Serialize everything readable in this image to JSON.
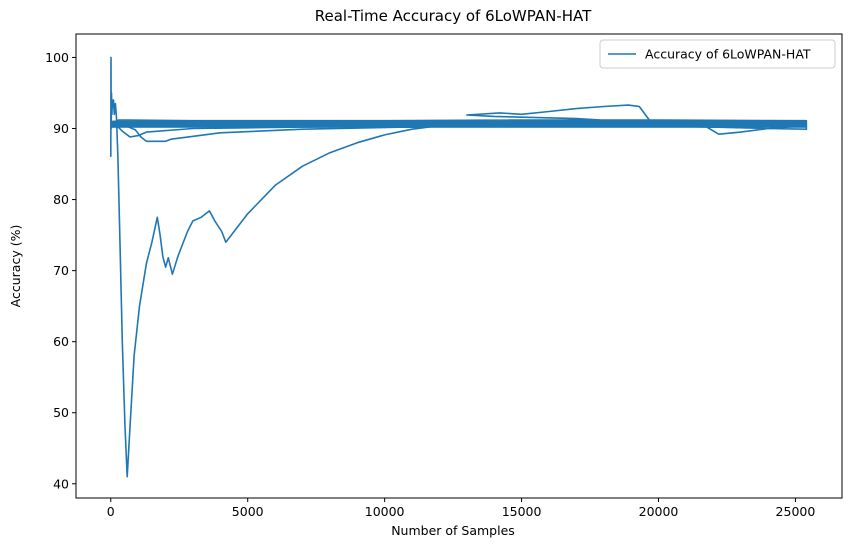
{
  "chart_data": {
    "type": "line",
    "title": "Real-Time Accuracy of 6LoWPAN-HAT",
    "xlabel": "Number of Samples",
    "ylabel": "Accuracy (%)",
    "xlim": [
      -1270,
      26700
    ],
    "ylim": [
      38,
      103.3
    ],
    "x_ticks": [
      0,
      5000,
      10000,
      15000,
      20000,
      25000
    ],
    "x_tick_labels": [
      "0",
      "5000",
      "10000",
      "15000",
      "20000",
      "25000"
    ],
    "y_ticks": [
      40,
      50,
      60,
      70,
      80,
      90,
      100
    ],
    "y_tick_labels": [
      "40",
      "50",
      "60",
      "70",
      "80",
      "90",
      "100"
    ],
    "grid": false,
    "legend_position": "top-right",
    "series": [
      {
        "name": "Accuracy of 6LoWPAN-HAT",
        "color": "#1f77b4",
        "points": [
          [
            0,
            86
          ],
          [
            8,
            100
          ],
          [
            15,
            90
          ],
          [
            25,
            95
          ],
          [
            40,
            92
          ],
          [
            60,
            94
          ],
          [
            80,
            93
          ],
          [
            100,
            94
          ],
          [
            130,
            92
          ],
          [
            170,
            93.5
          ],
          [
            210,
            91.5
          ],
          [
            260,
            86
          ],
          [
            330,
            75
          ],
          [
            420,
            60
          ],
          [
            520,
            48
          ],
          [
            600,
            41
          ],
          [
            700,
            48
          ],
          [
            850,
            58
          ],
          [
            1050,
            65
          ],
          [
            1300,
            71
          ],
          [
            1500,
            74
          ],
          [
            1700,
            77.5
          ],
          [
            1800,
            75
          ],
          [
            1900,
            72
          ],
          [
            2000,
            70.5
          ],
          [
            2100,
            71.8
          ],
          [
            2250,
            69.5
          ],
          [
            2450,
            72
          ],
          [
            2800,
            75.5
          ],
          [
            3000,
            77
          ],
          [
            3300,
            77.5
          ],
          [
            3600,
            78.4
          ],
          [
            3800,
            77
          ],
          [
            4050,
            75.5
          ],
          [
            4200,
            74
          ],
          [
            5000,
            78
          ],
          [
            6000,
            82
          ],
          [
            7000,
            84.7
          ],
          [
            8000,
            86.6
          ],
          [
            9000,
            88
          ],
          [
            10000,
            89.1
          ],
          [
            11000,
            89.9
          ],
          [
            12000,
            90.4
          ],
          [
            13000,
            90.7
          ],
          [
            14000,
            90.9
          ],
          [
            15000,
            91
          ],
          [
            16000,
            91
          ],
          [
            17000,
            91
          ],
          [
            18000,
            91
          ],
          [
            19000,
            91
          ],
          [
            20000,
            91
          ],
          [
            21000,
            91
          ],
          [
            22000,
            91
          ],
          [
            23000,
            91
          ],
          [
            24000,
            91
          ],
          [
            25000,
            91
          ],
          [
            25400,
            90.4
          ],
          [
            25400,
            89.9
          ],
          [
            24000,
            90
          ],
          [
            21000,
            90.3
          ],
          [
            17000,
            90.5
          ],
          [
            12000,
            90.4
          ],
          [
            7000,
            90.2
          ],
          [
            5000,
            90.1
          ],
          [
            3000,
            90
          ],
          [
            1300,
            89.5
          ],
          [
            1000,
            89
          ],
          [
            700,
            88.8
          ],
          [
            400,
            89.7
          ],
          [
            200,
            90.5
          ],
          [
            100,
            91
          ],
          [
            300,
            91.2
          ],
          [
            3000,
            91.1
          ],
          [
            10000,
            91.1
          ],
          [
            15000,
            91.2
          ],
          [
            20000,
            91.2
          ],
          [
            25400,
            91.1
          ],
          [
            25400,
            90.5
          ],
          [
            20000,
            90.7
          ],
          [
            17000,
            91.4
          ],
          [
            14000,
            91.7
          ],
          [
            13000,
            91.9
          ],
          [
            14200,
            92.2
          ],
          [
            15000,
            92
          ],
          [
            16000,
            92.4
          ],
          [
            17000,
            92.8
          ],
          [
            18000,
            93.1
          ],
          [
            18900,
            93.3
          ],
          [
            19300,
            93.1
          ],
          [
            19700,
            91
          ],
          [
            20500,
            90.8
          ],
          [
            21500,
            90.8
          ],
          [
            22200,
            89.2
          ],
          [
            23000,
            89.5
          ],
          [
            24000,
            90
          ],
          [
            25400,
            90.4
          ],
          [
            25400,
            90.8
          ],
          [
            22000,
            90.7
          ],
          [
            18000,
            90.5
          ],
          [
            12000,
            90.3
          ],
          [
            7000,
            89.9
          ],
          [
            4000,
            89.4
          ],
          [
            2200,
            88.5
          ],
          [
            2000,
            88.2
          ],
          [
            1700,
            88.2
          ],
          [
            1300,
            88.2
          ],
          [
            1100,
            88.8
          ],
          [
            900,
            89.8
          ],
          [
            600,
            90.3
          ],
          [
            300,
            90.8
          ],
          [
            150,
            90.5
          ]
        ]
      }
    ]
  }
}
